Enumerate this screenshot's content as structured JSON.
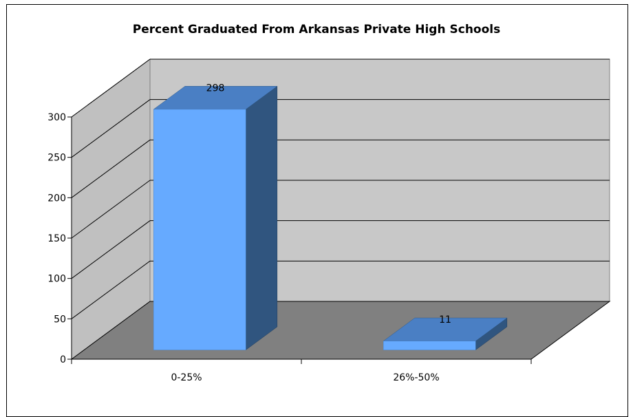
{
  "chart_data": {
    "type": "bar",
    "style": "3d-column",
    "title": "Percent Graduated From Arkansas Private High Schools",
    "xlabel": "",
    "ylabel": "",
    "categories": [
      "0-25%",
      "26%-50%"
    ],
    "values": [
      298,
      11
    ],
    "data_labels": [
      "298",
      "11"
    ],
    "yticks": [
      "0",
      "50",
      "100",
      "150",
      "200",
      "250",
      "300"
    ],
    "ylim": [
      0,
      300
    ],
    "grid": true,
    "legend": "none",
    "colors": {
      "bar_front": "#66AAFF",
      "bar_top": "#4A7FC4",
      "bar_side": "#30557F",
      "back_wall": "#C8C8C8",
      "side_wall": "#C0C0C0",
      "floor": "#808080",
      "axis": "#000000"
    }
  }
}
